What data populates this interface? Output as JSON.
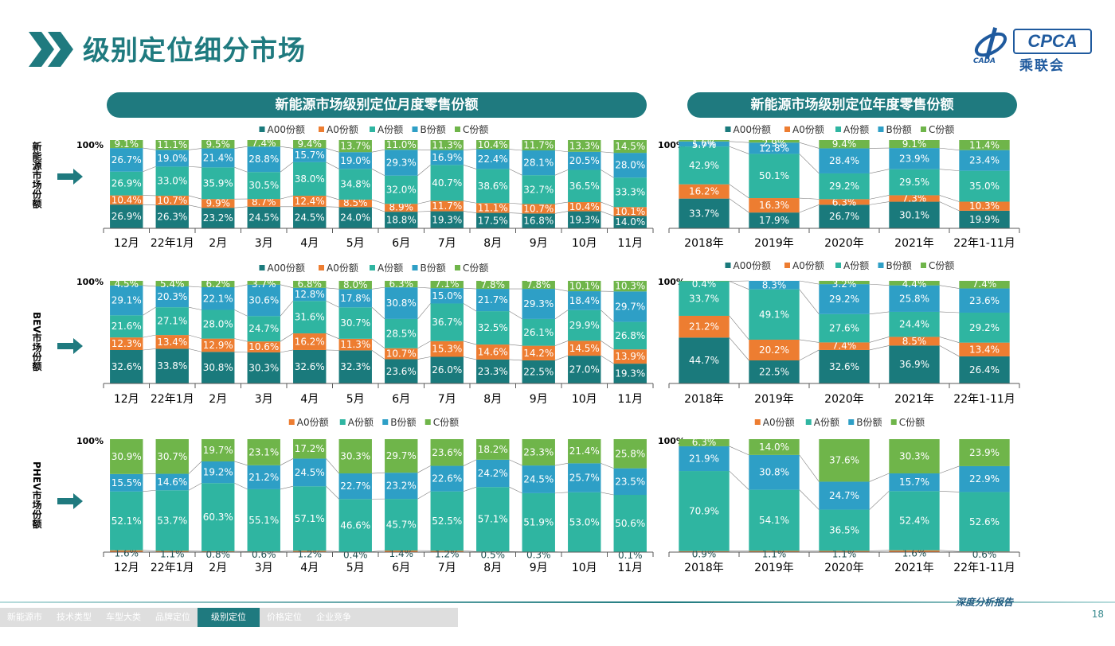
{
  "title": "级别定位细分市场",
  "logo": {
    "brand": "CPCA",
    "cn": "乘联会",
    "sub": "CADA"
  },
  "panel_titles": {
    "monthly": "新能源市场级别定位月度零售份额",
    "yearly": "新能源市场级别定位年度零售份额"
  },
  "row_labels": {
    "nev": "新能源市场份额",
    "bev": "BEV市场份额",
    "phev": "PHEV市场份额"
  },
  "hundred": "100%",
  "footer": {
    "tabs": [
      "新能源市场",
      "技术类型",
      "车型大类",
      "品牌定位",
      "级别定位",
      "价格定位",
      "企业竞争"
    ],
    "active_tab": "级别定位",
    "report_label": "深度分析报告",
    "page_number": "18"
  },
  "colors": {
    "A00": "#1a7a7c",
    "A0": "#ed7d31",
    "A": "#2fb5a1",
    "B": "#2e9fc6",
    "C": "#6fb54a",
    "title": "#1f7a7f"
  },
  "chart_data": [
    {
      "id": "nev-monthly",
      "type": "bar",
      "stacked": true,
      "percent": true,
      "categories": [
        "12月",
        "22年1月",
        "2月",
        "3月",
        "4月",
        "5月",
        "6月",
        "7月",
        "8月",
        "9月",
        "10月",
        "11月"
      ],
      "series": [
        {
          "name": "A00份额",
          "key": "A00",
          "values": [
            26.9,
            26.3,
            23.2,
            24.5,
            24.5,
            24.0,
            18.8,
            19.3,
            17.5,
            16.8,
            19.3,
            14.0
          ]
        },
        {
          "name": "A0份额",
          "key": "A0",
          "values": [
            10.4,
            10.7,
            9.9,
            8.7,
            12.4,
            8.5,
            8.9,
            11.7,
            11.1,
            10.7,
            10.4,
            10.1
          ]
        },
        {
          "name": "A份额",
          "key": "A",
          "values": [
            26.9,
            33.0,
            35.9,
            30.5,
            38.0,
            34.8,
            32.0,
            40.7,
            38.6,
            32.7,
            36.5,
            33.3
          ]
        },
        {
          "name": "B份额",
          "key": "B",
          "values": [
            26.7,
            19.0,
            21.4,
            28.8,
            15.7,
            19.0,
            29.3,
            16.9,
            22.4,
            28.1,
            20.5,
            28.0
          ]
        },
        {
          "name": "C份额",
          "key": "C",
          "values": [
            9.1,
            11.1,
            9.5,
            7.4,
            9.4,
            13.7,
            11.0,
            11.3,
            10.4,
            11.7,
            13.3,
            14.5
          ]
        }
      ]
    },
    {
      "id": "nev-yearly",
      "type": "bar",
      "stacked": true,
      "percent": true,
      "categories": [
        "2018年",
        "2019年",
        "2020年",
        "2021年",
        "22年1-11月"
      ],
      "series": [
        {
          "name": "A00份额",
          "key": "A00",
          "values": [
            33.7,
            17.9,
            26.7,
            30.1,
            19.9
          ]
        },
        {
          "name": "A0份额",
          "key": "A0",
          "values": [
            16.2,
            16.3,
            6.3,
            7.3,
            10.3
          ]
        },
        {
          "name": "A份额",
          "key": "A",
          "values": [
            42.9,
            50.1,
            29.2,
            29.5,
            35.0
          ]
        },
        {
          "name": "B份额",
          "key": "B",
          "values": [
            5.7,
            12.8,
            28.4,
            23.9,
            23.4
          ]
        },
        {
          "name": "C份额",
          "key": "C",
          "values": [
            1.6,
            2.9,
            9.4,
            9.1,
            11.4
          ]
        }
      ]
    },
    {
      "id": "bev-monthly",
      "type": "bar",
      "stacked": true,
      "percent": true,
      "categories": [
        "12月",
        "22年1月",
        "2月",
        "3月",
        "4月",
        "5月",
        "6月",
        "7月",
        "8月",
        "9月",
        "10月",
        "11月"
      ],
      "series": [
        {
          "name": "A00份额",
          "key": "A00",
          "values": [
            32.6,
            33.8,
            30.8,
            30.3,
            32.6,
            32.3,
            23.6,
            26.0,
            23.3,
            22.5,
            27.0,
            19.3
          ]
        },
        {
          "name": "A0份额",
          "key": "A0",
          "values": [
            12.3,
            13.4,
            12.9,
            10.6,
            16.2,
            11.3,
            10.7,
            15.3,
            14.6,
            14.2,
            14.5,
            13.9
          ]
        },
        {
          "name": "A份额",
          "key": "A",
          "values": [
            21.6,
            27.1,
            28.0,
            24.7,
            31.6,
            30.7,
            28.5,
            36.7,
            32.5,
            26.1,
            29.9,
            26.8
          ]
        },
        {
          "name": "B份额",
          "key": "B",
          "values": [
            29.1,
            20.3,
            22.1,
            30.6,
            12.8,
            17.8,
            30.8,
            15.0,
            21.7,
            29.3,
            18.4,
            29.7
          ]
        },
        {
          "name": "C份额",
          "key": "C",
          "values": [
            4.5,
            5.4,
            6.2,
            3.7,
            6.8,
            8.0,
            6.3,
            7.1,
            7.8,
            7.8,
            10.1,
            10.3
          ]
        }
      ]
    },
    {
      "id": "bev-yearly",
      "type": "bar",
      "stacked": true,
      "percent": true,
      "categories": [
        "2018年",
        "2019年",
        "2020年",
        "2021年",
        "22年1-11月"
      ],
      "series": [
        {
          "name": "A00份额",
          "key": "A00",
          "values": [
            44.7,
            22.5,
            32.6,
            36.9,
            26.4
          ]
        },
        {
          "name": "A0份额",
          "key": "A0",
          "values": [
            21.2,
            20.2,
            7.4,
            8.5,
            13.4
          ]
        },
        {
          "name": "A份额",
          "key": "A",
          "values": [
            33.7,
            49.1,
            27.6,
            24.4,
            29.2
          ]
        },
        {
          "name": "B份额",
          "key": "B",
          "values": [
            0.0,
            8.3,
            29.2,
            25.8,
            23.6
          ]
        },
        {
          "name": "C份额",
          "key": "C",
          "values": [
            0.4,
            0.0,
            3.2,
            4.4,
            7.4
          ]
        }
      ]
    },
    {
      "id": "phev-monthly",
      "type": "bar",
      "stacked": true,
      "percent": true,
      "categories": [
        "12月",
        "22年1月",
        "2月",
        "3月",
        "4月",
        "5月",
        "6月",
        "7月",
        "8月",
        "9月",
        "10月",
        "11月"
      ],
      "series": [
        {
          "name": "A0份额",
          "key": "A0",
          "values": [
            1.6,
            1.1,
            0.8,
            0.6,
            1.2,
            0.4,
            1.4,
            1.2,
            0.5,
            0.3,
            0.0,
            0.1
          ]
        },
        {
          "name": "A份额",
          "key": "A",
          "values": [
            52.1,
            53.7,
            60.3,
            55.1,
            57.1,
            46.6,
            45.7,
            52.5,
            57.1,
            51.9,
            53.0,
            50.6
          ]
        },
        {
          "name": "B份额",
          "key": "B",
          "values": [
            15.5,
            14.6,
            19.2,
            21.2,
            24.5,
            22.7,
            23.2,
            22.6,
            24.2,
            24.5,
            25.7,
            23.5
          ]
        },
        {
          "name": "C份额",
          "key": "C",
          "values": [
            30.9,
            30.7,
            19.7,
            23.1,
            17.2,
            30.3,
            29.7,
            23.6,
            18.2,
            23.3,
            21.4,
            25.8
          ]
        }
      ]
    },
    {
      "id": "phev-yearly",
      "type": "bar",
      "stacked": true,
      "percent": true,
      "categories": [
        "2018年",
        "2019年",
        "2020年",
        "2021年",
        "22年1-11月"
      ],
      "series": [
        {
          "name": "A0份额",
          "key": "A0",
          "values": [
            0.9,
            1.1,
            1.1,
            1.6,
            0.6
          ]
        },
        {
          "name": "A份额",
          "key": "A",
          "values": [
            70.9,
            54.1,
            36.5,
            52.4,
            52.6
          ]
        },
        {
          "name": "B份额",
          "key": "B",
          "values": [
            21.9,
            30.8,
            24.7,
            15.7,
            22.9
          ]
        },
        {
          "name": "C份额",
          "key": "C",
          "values": [
            6.3,
            14.0,
            37.6,
            30.3,
            23.9
          ]
        }
      ]
    }
  ]
}
